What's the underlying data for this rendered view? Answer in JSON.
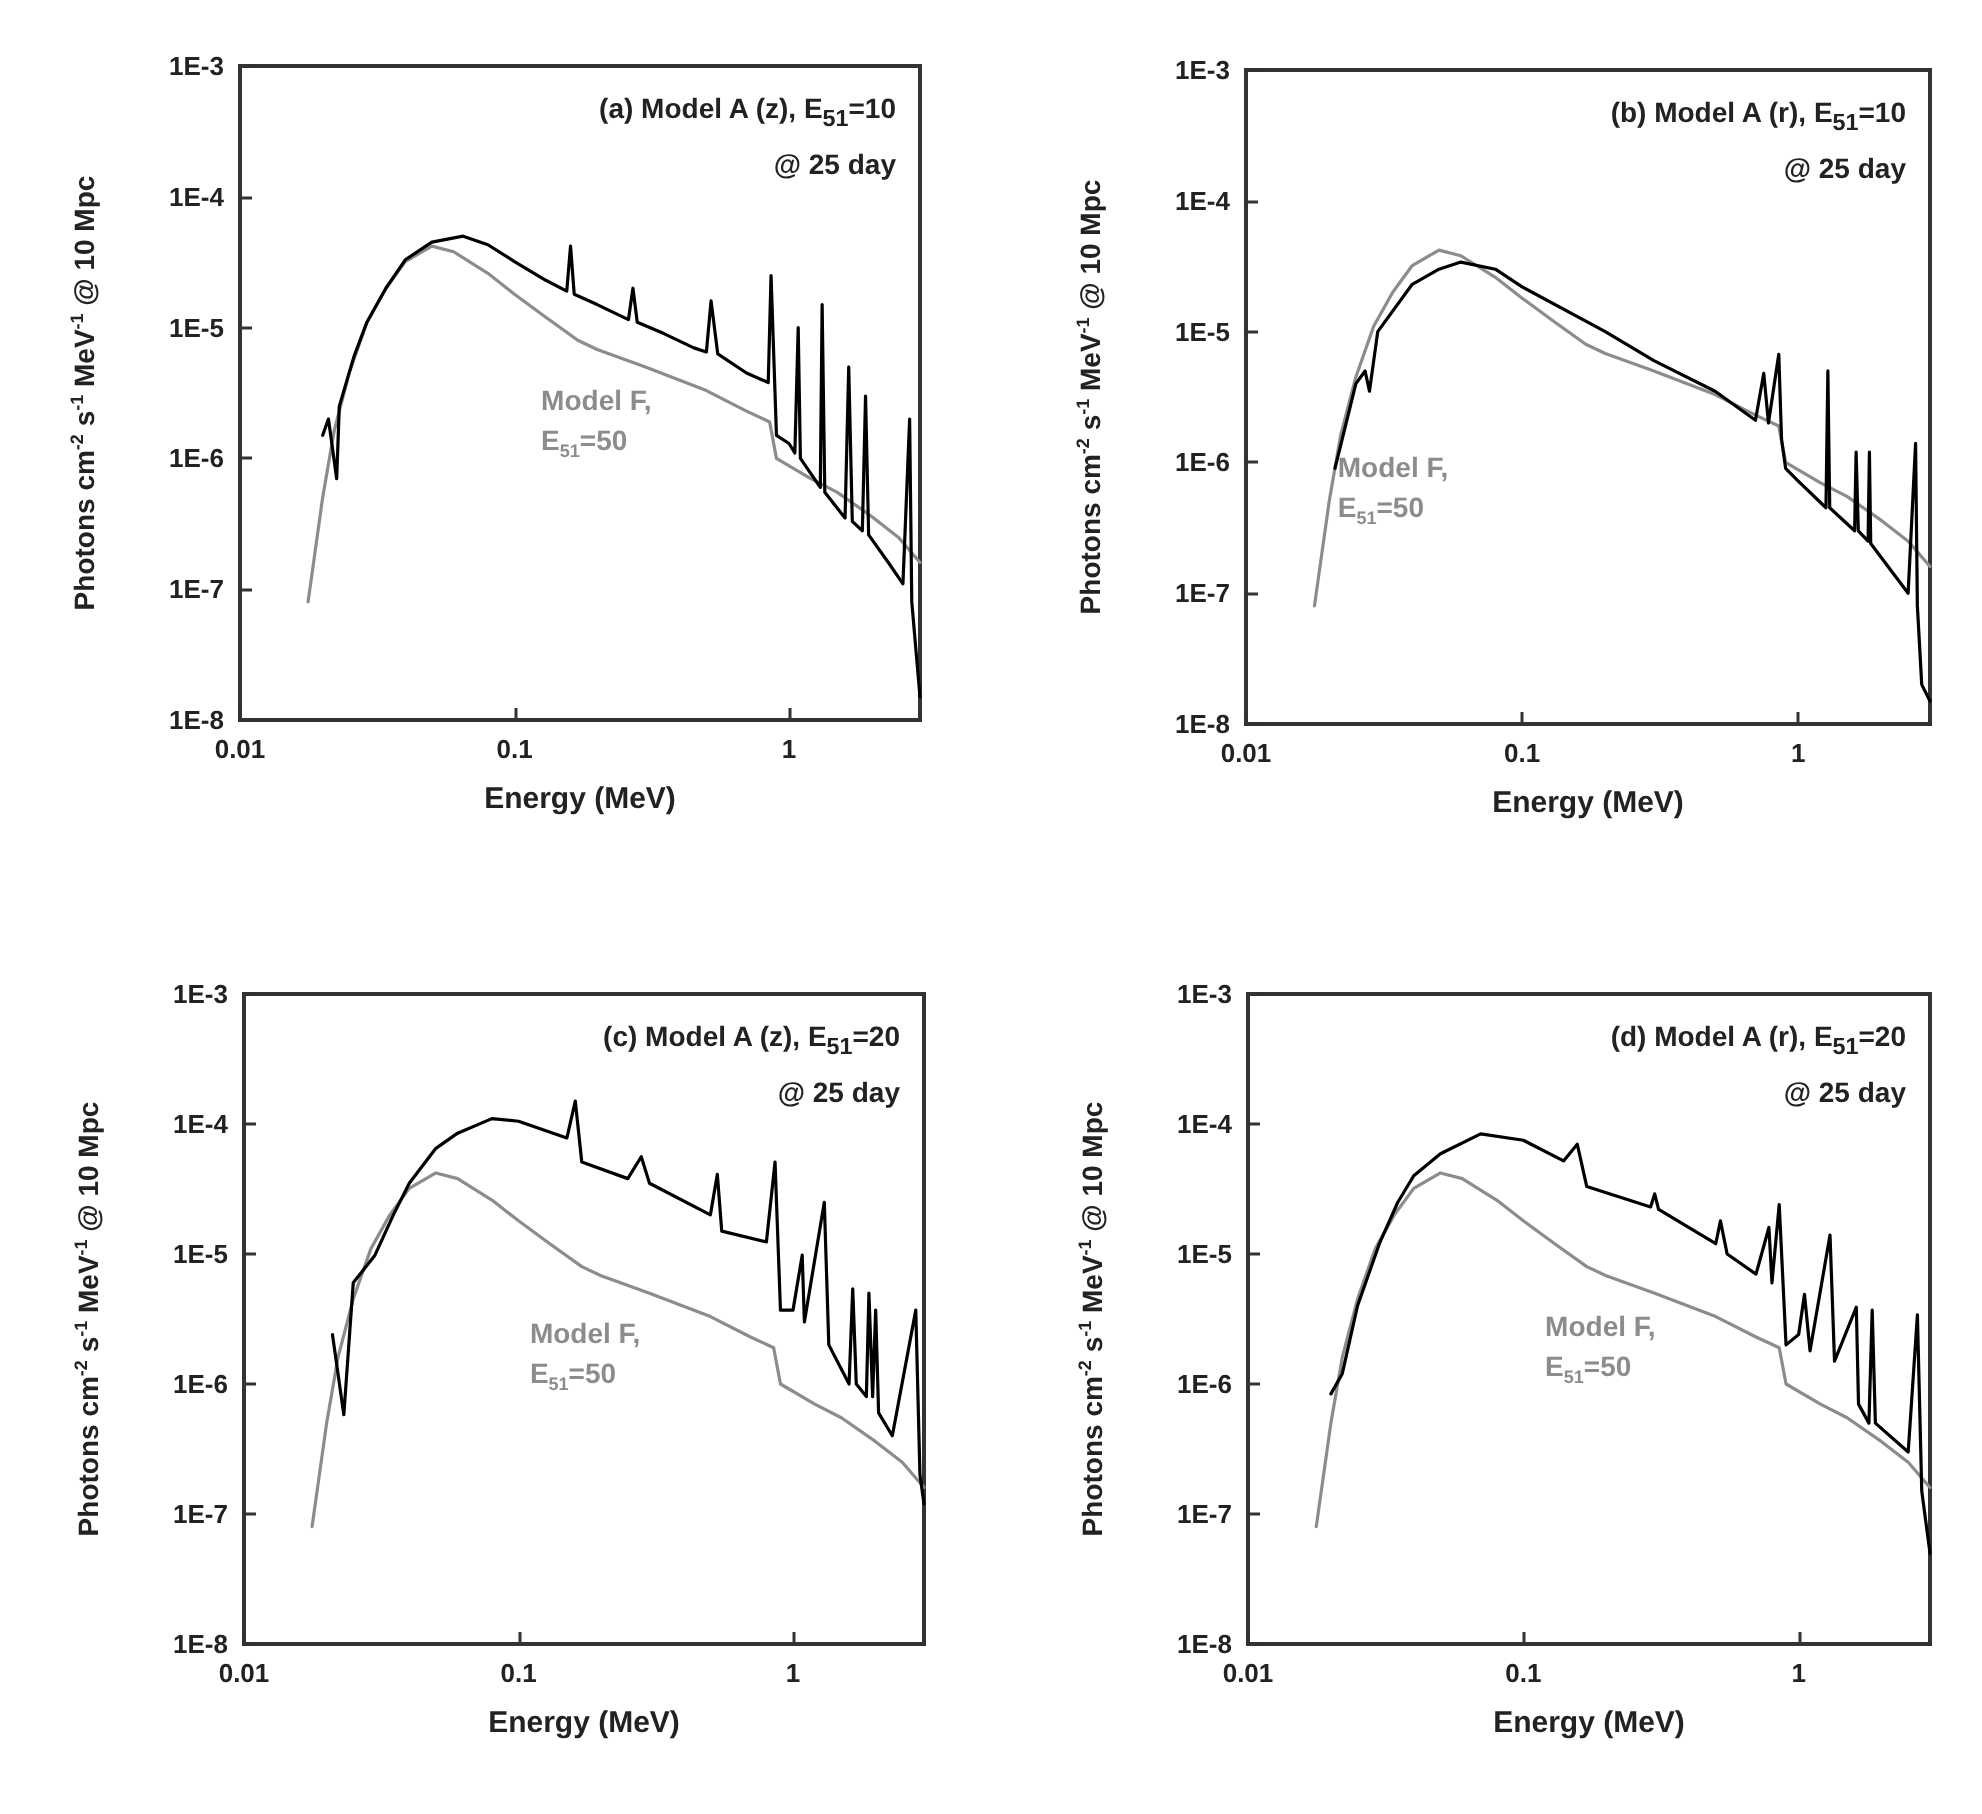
{
  "chart_data": [
    {
      "type": "line",
      "title": "(a) Model A (z), E$_{51}$=10",
      "subtitle": "@ 25 day",
      "xlabel": "Energy (MeV)",
      "ylabel": "Photons cm$^{-2}$ s$^{-1}$ MeV$^{-1}$ @ 10 Mpc",
      "log": "xy",
      "grid": false,
      "marker": "none",
      "xlim": [
        0.01,
        3
      ],
      "xticks": [
        0.01,
        0.1,
        1
      ],
      "ylim": [
        1e-08,
        0.001
      ],
      "yticks": [
        {
          "value": 1e-08,
          "label": "1E-8"
        },
        {
          "value": 1e-07,
          "label": "1E-7"
        },
        {
          "value": 1e-06,
          "label": "1E-6"
        },
        {
          "value": 1e-05,
          "label": "1E-5"
        },
        {
          "value": 0.0001,
          "label": "1E-4"
        },
        {
          "value": 0.001,
          "label": "1E-3"
        }
      ],
      "series": [
        {
          "name": "Model F, E$_{51}$=50",
          "color": "#8c8c8c",
          "x": [
            0.0177,
            0.02,
            0.022,
            0.025,
            0.029,
            0.034,
            0.04,
            0.05,
            0.06,
            0.08,
            0.1,
            0.13,
            0.17,
            0.2,
            0.3,
            0.5,
            0.7,
            0.85,
            0.9,
            1.2,
            1.5,
            2,
            2.5,
            3
          ],
          "values": [
            8e-08,
            5e-07,
            1.6e-06,
            4.5e-06,
            1.1e-05,
            2e-05,
            3.2e-05,
            4.2e-05,
            3.8e-05,
            2.6e-05,
            1.8e-05,
            1.2e-05,
            8e-06,
            6.8e-06,
            5e-06,
            3.3e-06,
            2.3e-06,
            1.9e-06,
            1e-06,
            7e-07,
            5.5e-07,
            3.6e-07,
            2.5e-07,
            1.6e-07
          ]
        },
        {
          "color": "#000000",
          "x": [
            0.02,
            0.021,
            0.0225,
            0.023,
            0.026,
            0.029,
            0.034,
            0.04,
            0.05,
            0.065,
            0.08,
            0.1,
            0.13,
            0.155,
            0.16,
            0.165,
            0.2,
            0.26,
            0.27,
            0.28,
            0.35,
            0.45,
            0.5,
            0.52,
            0.55,
            0.7,
            0.84,
            0.86,
            0.9,
            1,
            1.05,
            1.08,
            1.1,
            1.3,
            1.32,
            1.35,
            1.6,
            1.65,
            1.7,
            1.85,
            1.9,
            1.95,
            2.3,
            2.6,
            2.75,
            2.8,
            3
          ],
          "values": [
            1.5e-06,
            2e-06,
            7e-07,
            2.5e-06,
            6e-06,
            1.1e-05,
            2e-05,
            3.3e-05,
            4.5e-05,
            5e-05,
            4.3e-05,
            3.2e-05,
            2.3e-05,
            1.9e-05,
            4.2e-05,
            1.8e-05,
            1.5e-05,
            1.15e-05,
            2e-05,
            1.1e-05,
            9e-06,
            7e-06,
            6.5e-06,
            1.6e-05,
            6.3e-06,
            4.5e-06,
            3.8e-06,
            2.5e-05,
            1.5e-06,
            1.3e-06,
            1.1e-06,
            1e-05,
            1e-06,
            6e-07,
            1.5e-05,
            5.5e-07,
            3.5e-07,
            5e-06,
            3.3e-07,
            2.8e-07,
            3e-06,
            2.6e-07,
            1.6e-07,
            1.1e-07,
            2e-06,
            8e-08,
            1.5e-08
          ]
        }
      ]
    },
    {
      "type": "line",
      "title": "(b) Model A (r), E$_{51}$=10",
      "subtitle": "@ 25 day",
      "xlabel": "Energy (MeV)",
      "ylabel": "Photons cm$^{-2}$ s$^{-1}$ MeV$^{-1}$ @ 10 Mpc",
      "log": "xy",
      "grid": false,
      "marker": "none",
      "xlim": [
        0.01,
        3
      ],
      "xticks": [
        0.01,
        0.1,
        1
      ],
      "ylim": [
        1e-08,
        0.001
      ],
      "yticks": [
        {
          "value": 1e-08,
          "label": "1E-8"
        },
        {
          "value": 1e-07,
          "label": "1E-7"
        },
        {
          "value": 1e-06,
          "label": "1E-6"
        },
        {
          "value": 1e-05,
          "label": "1E-5"
        },
        {
          "value": 0.0001,
          "label": "1E-4"
        },
        {
          "value": 0.001,
          "label": "1E-3"
        }
      ],
      "series": [
        {
          "name": "Model F, E$_{51}$=50",
          "color": "#8c8c8c",
          "x": [
            0.0177,
            0.02,
            0.022,
            0.025,
            0.029,
            0.034,
            0.04,
            0.05,
            0.06,
            0.08,
            0.1,
            0.13,
            0.17,
            0.2,
            0.3,
            0.5,
            0.7,
            0.85,
            0.9,
            1.2,
            1.5,
            2,
            2.5,
            3
          ],
          "values": [
            8e-08,
            5e-07,
            1.6e-06,
            4.5e-06,
            1.1e-05,
            2e-05,
            3.2e-05,
            4.2e-05,
            3.8e-05,
            2.6e-05,
            1.8e-05,
            1.2e-05,
            8e-06,
            6.8e-06,
            5e-06,
            3.3e-06,
            2.3e-06,
            1.9e-06,
            1e-06,
            7e-07,
            5.5e-07,
            3.6e-07,
            2.5e-07,
            1.6e-07
          ]
        },
        {
          "color": "#000000",
          "x": [
            0.021,
            0.025,
            0.027,
            0.028,
            0.03,
            0.04,
            0.05,
            0.06,
            0.08,
            0.1,
            0.2,
            0.3,
            0.5,
            0.7,
            0.75,
            0.78,
            0.85,
            0.87,
            0.9,
            1,
            1.26,
            1.28,
            1.3,
            1.6,
            1.62,
            1.65,
            1.79,
            1.81,
            1.83,
            2.5,
            2.66,
            2.7,
            2.8,
            3
          ],
          "values": [
            9e-07,
            4e-06,
            5e-06,
            3.5e-06,
            1e-05,
            2.3e-05,
            3e-05,
            3.4e-05,
            3e-05,
            2.2e-05,
            1e-05,
            6e-06,
            3.5e-06,
            2.1e-06,
            4.8e-06,
            2e-06,
            6.7e-06,
            1.5e-06,
            9e-07,
            7.2e-07,
            4.5e-07,
            5e-06,
            4.5e-07,
            3e-07,
            1.2e-06,
            3e-07,
            2.5e-07,
            1.2e-06,
            2.4e-07,
            1e-07,
            1.4e-06,
            8e-08,
            2e-08,
            1.5e-08
          ]
        }
      ]
    },
    {
      "type": "line",
      "title": "(c) Model A (z), E$_{51}$=20",
      "subtitle": "@ 25 day",
      "xlabel": "Energy (MeV)",
      "ylabel": "Photons cm$^{-2}$ s$^{-1}$ MeV$^{-1}$ @ 10 Mpc",
      "log": "xy",
      "grid": false,
      "marker": "none",
      "xlim": [
        0.01,
        3
      ],
      "xticks": [
        0.01,
        0.1,
        1
      ],
      "ylim": [
        1e-08,
        0.001
      ],
      "yticks": [
        {
          "value": 1e-08,
          "label": "1E-8"
        },
        {
          "value": 1e-07,
          "label": "1E-7"
        },
        {
          "value": 1e-06,
          "label": "1E-6"
        },
        {
          "value": 1e-05,
          "label": "1E-5"
        },
        {
          "value": 0.0001,
          "label": "1E-4"
        },
        {
          "value": 0.001,
          "label": "1E-3"
        }
      ],
      "series": [
        {
          "name": "Model F, E$_{51}$=50",
          "color": "#8c8c8c",
          "x": [
            0.0177,
            0.02,
            0.022,
            0.025,
            0.029,
            0.034,
            0.04,
            0.05,
            0.06,
            0.08,
            0.1,
            0.13,
            0.17,
            0.2,
            0.3,
            0.5,
            0.7,
            0.85,
            0.9,
            1.2,
            1.5,
            2,
            2.5,
            3
          ],
          "values": [
            8e-08,
            5e-07,
            1.6e-06,
            4.5e-06,
            1.1e-05,
            2e-05,
            3.2e-05,
            4.2e-05,
            3.8e-05,
            2.6e-05,
            1.8e-05,
            1.2e-05,
            8e-06,
            6.8e-06,
            5e-06,
            3.3e-06,
            2.3e-06,
            1.9e-06,
            1e-06,
            7e-07,
            5.5e-07,
            3.6e-07,
            2.5e-07,
            1.6e-07
          ]
        },
        {
          "color": "#000000",
          "x": [
            0.021,
            0.0231,
            0.025,
            0.03,
            0.035,
            0.04,
            0.05,
            0.06,
            0.08,
            0.1,
            0.15,
            0.161,
            0.17,
            0.25,
            0.28,
            0.3,
            0.5,
            0.53,
            0.55,
            0.8,
            0.86,
            0.9,
            1,
            1.08,
            1.1,
            1.3,
            1.35,
            1.6,
            1.65,
            1.7,
            1.85,
            1.89,
            1.95,
            2,
            2.05,
            2.3,
            2.8,
            2.9,
            3
          ],
          "values": [
            2.4e-06,
            5.8e-07,
            6e-06,
            9.8e-06,
            2e-05,
            3.5e-05,
            6.5e-05,
            8.5e-05,
            0.00011,
            0.000105,
            7.8e-05,
            0.00015,
            5.1e-05,
            3.8e-05,
            5.6e-05,
            3.5e-05,
            2e-05,
            4.1e-05,
            1.5e-05,
            1.24e-05,
            5.1e-05,
            3.7e-06,
            3.7e-06,
            9.8e-06,
            3e-06,
            2.5e-05,
            2e-06,
            1e-06,
            5.4e-06,
            1e-06,
            8e-07,
            5e-06,
            8e-07,
            3.7e-06,
            6e-07,
            4e-07,
            3.7e-06,
            2e-07,
            1.2e-07
          ]
        }
      ]
    },
    {
      "type": "line",
      "title": "(d) Model A (r), E$_{51}$=20",
      "subtitle": "@ 25 day",
      "xlabel": "Energy (MeV)",
      "ylabel": "Photons cm$^{-2}$ s$^{-1}$ MeV$^{-1}$ @ 10 Mpc",
      "log": "xy",
      "grid": false,
      "marker": "none",
      "xlim": [
        0.01,
        3
      ],
      "xticks": [
        0.01,
        0.1,
        1
      ],
      "ylim": [
        1e-08,
        0.001
      ],
      "yticks": [
        {
          "value": 1e-08,
          "label": "1E-8"
        },
        {
          "value": 1e-07,
          "label": "1E-7"
        },
        {
          "value": 1e-06,
          "label": "1E-6"
        },
        {
          "value": 1e-05,
          "label": "1E-5"
        },
        {
          "value": 0.0001,
          "label": "1E-4"
        },
        {
          "value": 0.001,
          "label": "1E-3"
        }
      ],
      "series": [
        {
          "name": "Model F, E$_{51}$=50",
          "color": "#8c8c8c",
          "x": [
            0.0177,
            0.02,
            0.022,
            0.025,
            0.029,
            0.034,
            0.04,
            0.05,
            0.06,
            0.08,
            0.1,
            0.13,
            0.17,
            0.2,
            0.3,
            0.5,
            0.7,
            0.85,
            0.9,
            1.2,
            1.5,
            2,
            2.5,
            3
          ],
          "values": [
            8e-08,
            5e-07,
            1.6e-06,
            4.5e-06,
            1.1e-05,
            2e-05,
            3.2e-05,
            4.2e-05,
            3.8e-05,
            2.6e-05,
            1.8e-05,
            1.2e-05,
            8e-06,
            6.8e-06,
            5e-06,
            3.3e-06,
            2.3e-06,
            1.9e-06,
            1e-06,
            7e-07,
            5.5e-07,
            3.6e-07,
            2.5e-07,
            1.6e-07
          ]
        },
        {
          "color": "#000000",
          "x": [
            0.02,
            0.022,
            0.025,
            0.03,
            0.035,
            0.04,
            0.05,
            0.07,
            0.1,
            0.14,
            0.157,
            0.17,
            0.29,
            0.3,
            0.31,
            0.5,
            0.52,
            0.55,
            0.7,
            0.78,
            0.8,
            0.85,
            0.9,
            1,
            1.05,
            1.1,
            1.3,
            1.35,
            1.62,
            1.65,
            1.8,
            1.85,
            1.9,
            2.5,
            2.7,
            2.8,
            3
          ],
          "values": [
            8.4e-07,
            1.2e-06,
            4e-06,
            1.2e-05,
            2.5e-05,
            4e-05,
            5.9e-05,
            8.4e-05,
            7.5e-05,
            5.2e-05,
            7e-05,
            3.3e-05,
            2.3e-05,
            2.9e-05,
            2.2e-05,
            1.2e-05,
            1.8e-05,
            1e-05,
            7e-06,
            1.6e-05,
            6e-06,
            2.4e-05,
            2e-06,
            2.4e-06,
            4.9e-06,
            1.8e-06,
            1.4e-05,
            1.5e-06,
            3.9e-06,
            7e-07,
            5e-07,
            3.7e-06,
            5e-07,
            3e-07,
            3.4e-06,
            1.5e-07,
            5e-08
          ]
        }
      ]
    }
  ]
}
